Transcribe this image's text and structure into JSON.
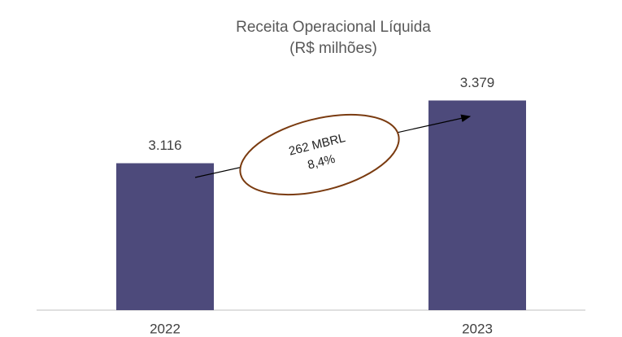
{
  "chart_data": {
    "type": "bar",
    "title": "Receita Operacional Líquida",
    "subtitle": "(R$ milhões)",
    "categories": [
      "2022",
      "2023"
    ],
    "values": [
      3116,
      3379
    ],
    "value_labels": [
      "3.116",
      "3.379"
    ],
    "color": "#4d4a7b",
    "ylim": [
      2500,
      3500
    ],
    "annotations": [
      "262 MBRL",
      "8,4%"
    ]
  }
}
